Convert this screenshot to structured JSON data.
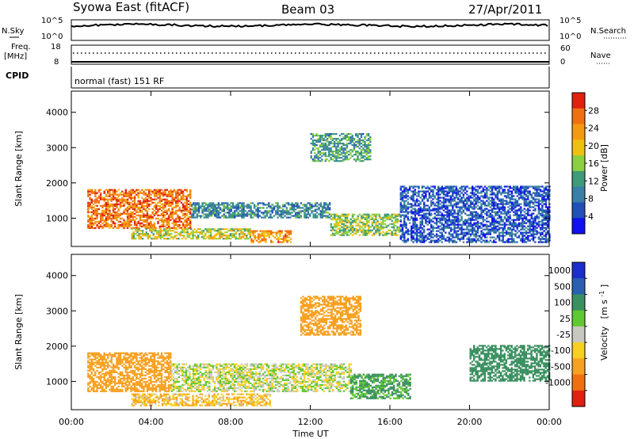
{
  "header": {
    "station": "Syowa East (fitACF)",
    "beam": "Beam 03",
    "date": "27/Apr/2011"
  },
  "status_panels": {
    "nsky_label": "N.Sky",
    "nsearch_label": "N.Search",
    "noise_ticks": [
      "10^5",
      "10^0"
    ],
    "freq_label_1": "Freq.",
    "freq_label_2": "[MHz]",
    "freq_ticks": [
      "18",
      "8"
    ],
    "nave_label": "Nave",
    "nave_ticks": [
      "60",
      "0"
    ],
    "cpid_label": "CPID",
    "cpid_text": "normal (fast) 151 RF"
  },
  "colors": {
    "power_scale": [
      "#1010f0",
      "#2050b8",
      "#3a7fa8",
      "#3e9a78",
      "#8ccf40",
      "#f0c010",
      "#f59a10",
      "#f07010",
      "#e02010"
    ],
    "velocity_scale": [
      "#1a2ecc",
      "#2a60b0",
      "#3a9060",
      "#60c830",
      "#c8c8c0",
      "#f8d020",
      "#f8a020",
      "#f07010",
      "#e02010"
    ]
  },
  "chart_data": [
    {
      "type": "heatmap",
      "title": "Power",
      "xlabel": "Time UT",
      "ylabel": "Slant Range [km]",
      "x_ticks": [
        "00:00",
        "04:00",
        "08:00",
        "12:00",
        "16:00",
        "20:00",
        "00:00"
      ],
      "x_range_hours": [
        0,
        24
      ],
      "y_ticks": [
        "1000",
        "2000",
        "3000",
        "4000"
      ],
      "ylim": [
        200,
        4600
      ],
      "colorbar_label": "Power [dB]",
      "colorbar_ticks": [
        "4",
        "8",
        "12",
        "16",
        "20",
        "24",
        "28"
      ],
      "colorbar_range": [
        0,
        32
      ],
      "regions": [
        {
          "t0": 0.8,
          "t1": 6.0,
          "r0": 700,
          "r1": 1800,
          "value": 26
        },
        {
          "t0": 6.0,
          "t1": 13.0,
          "r0": 1000,
          "r1": 1450,
          "value": 10
        },
        {
          "t0": 9.0,
          "t1": 11.0,
          "r0": 300,
          "r1": 650,
          "value": 24
        },
        {
          "t0": 3.0,
          "t1": 9.0,
          "r0": 400,
          "r1": 700,
          "value": 18
        },
        {
          "t0": 13.0,
          "t1": 16.5,
          "r0": 500,
          "r1": 1100,
          "value": 16
        },
        {
          "t0": 16.5,
          "t1": 24.0,
          "r0": 300,
          "r1": 1900,
          "value": 6
        },
        {
          "t0": 12.0,
          "t1": 15.0,
          "r0": 2600,
          "r1": 3400,
          "value": 12
        }
      ]
    },
    {
      "type": "heatmap",
      "title": "Velocity",
      "xlabel": "Time UT",
      "ylabel": "Slant Range [km]",
      "x_ticks": [
        "00:00",
        "04:00",
        "08:00",
        "12:00",
        "16:00",
        "20:00",
        "00:00"
      ],
      "x_range_hours": [
        0,
        24
      ],
      "y_ticks": [
        "1000",
        "2000",
        "3000",
        "4000"
      ],
      "ylim": [
        200,
        4600
      ],
      "colorbar_label": "Velocity",
      "colorbar_unit": "[m s",
      "colorbar_unit_exp": "-1",
      "colorbar_unit_end": "]",
      "colorbar_ticks": [
        "1000",
        "500",
        "100",
        "25",
        "-25",
        "-100",
        "-500",
        "-1000"
      ],
      "regions": [
        {
          "t0": 0.8,
          "t1": 5.0,
          "r0": 700,
          "r1": 1800,
          "value": -300
        },
        {
          "t0": 5.0,
          "t1": 14.0,
          "r0": 700,
          "r1": 1500,
          "value": 0
        },
        {
          "t0": 3.0,
          "t1": 10.0,
          "r0": 300,
          "r1": 650,
          "value": -80
        },
        {
          "t0": 14.0,
          "t1": 17.0,
          "r0": 500,
          "r1": 1200,
          "value": 120
        },
        {
          "t0": 11.5,
          "t1": 14.5,
          "r0": 2300,
          "r1": 3400,
          "value": -300
        },
        {
          "t0": 20.0,
          "t1": 24.0,
          "r0": 1000,
          "r1": 2000,
          "value": 300
        }
      ]
    }
  ]
}
